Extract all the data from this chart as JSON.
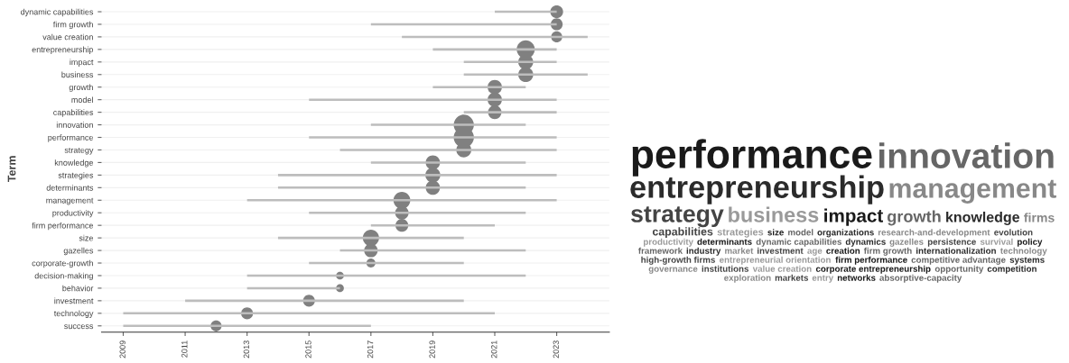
{
  "chart_data": [
    {
      "type": "bar",
      "orientation": "horizontal",
      "ylabel": "Term",
      "grid": "y",
      "categories": [
        "dynamic capabilities",
        "firm growth",
        "value creation",
        "entrepreneurship",
        "impact",
        "business",
        "growth",
        "model",
        "capabilities",
        "innovation",
        "performance",
        "strategy",
        "knowledge",
        "strategies",
        "determinants",
        "management",
        "productivity",
        "firm performance",
        "size",
        "gazelles",
        "corporate-growth",
        "decision-making",
        "behavior",
        "investment",
        "technology",
        "success"
      ],
      "xlim": [
        2008.3,
        2024.7
      ],
      "xticks": [
        2009,
        2011,
        2013,
        2015,
        2017,
        2019,
        2021,
        2023
      ],
      "series": [
        {
          "type": "bar",
          "color": "#bdbdbd",
          "base": [
            2021,
            2017,
            2018,
            2019,
            2020,
            2020,
            2019,
            2015,
            2020,
            2017,
            2015,
            2016,
            2017,
            2014,
            2014,
            2013,
            2015,
            2017,
            2014,
            2016,
            2015,
            2013,
            2013,
            2011,
            2009,
            2009
          ],
          "values": [
            2,
            6,
            6,
            4,
            3,
            4,
            3,
            8,
            3,
            5,
            8,
            7,
            5,
            9,
            8,
            10,
            7,
            4,
            6,
            6,
            5,
            9,
            3,
            9,
            12,
            8
          ]
        },
        {
          "type": "bubble",
          "color": "#808080",
          "values": [
            2023,
            2023,
            2023,
            2022,
            2022,
            2022,
            2021,
            2021,
            2021,
            2020,
            2020,
            2020,
            2019,
            2019,
            2019,
            2018,
            2018,
            2018,
            2017,
            2017,
            2017,
            2016,
            2016,
            2015,
            2013,
            2012
          ],
          "sizes": [
            0.4,
            0.35,
            0.3,
            0.8,
            0.55,
            0.55,
            0.5,
            0.5,
            0.45,
            1,
            1,
            0.55,
            0.5,
            0.55,
            0.5,
            0.7,
            0.45,
            0.4,
            0.65,
            0.45,
            0.2,
            0.15,
            0.15,
            0.35,
            0.35,
            0.3
          ]
        }
      ]
    },
    {
      "type": "other",
      "annotations": [
        "performance",
        "innovation",
        "entrepreneurship",
        "management",
        "strategy",
        "business",
        "impact",
        "growth",
        "knowledge",
        "firms",
        "capabilities",
        "strategies",
        "size",
        "model",
        "organizations",
        "research-and-development",
        "evolution",
        "productivity",
        "determinants",
        "dynamic capabilities",
        "dynamics",
        "gazelles",
        "persistence",
        "survival",
        "policy",
        "framework",
        "industry",
        "market",
        "investment",
        "age",
        "creation",
        "firm growth",
        "internationalization",
        "technology",
        "high-growth firms",
        "entrepreneurial orientation",
        "firm performance",
        "competitive advantage",
        "systems",
        "governance",
        "institutions",
        "value creation",
        "corporate entrepreneurship",
        "opportunity",
        "competition",
        "exploration",
        "markets",
        "entry",
        "networks",
        "absorptive-capacity"
      ]
    }
  ]
}
